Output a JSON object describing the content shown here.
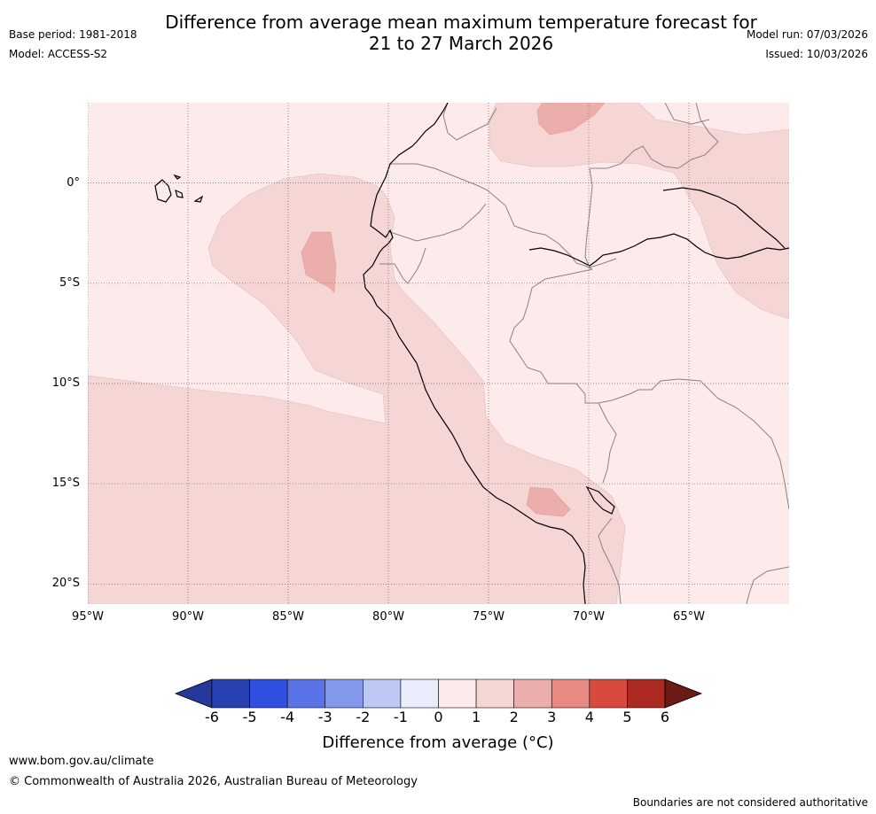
{
  "title": {
    "line1": "Difference from average mean maximum temperature forecast for",
    "line2": "21 to 27 March 2026"
  },
  "meta": {
    "base_period": "Base period: 1981-2018",
    "model": "Model: ACCESS-S2",
    "model_run": "Model run: 07/03/2026",
    "issued": "Issued: 10/03/2026"
  },
  "map": {
    "region": "Western South America",
    "lon_range": [
      -95,
      -60
    ],
    "lat_range": [
      -21,
      4
    ],
    "lat_labels": [
      "0°",
      "5°S",
      "10°S",
      "15°S",
      "20°S"
    ],
    "lat_values": [
      0,
      -5,
      -10,
      -15,
      -20
    ],
    "lon_labels": [
      "95°W",
      "90°W",
      "85°W",
      "80°W",
      "75°W",
      "70°W",
      "65°W"
    ],
    "lon_values": [
      -95,
      -90,
      -85,
      -80,
      -75,
      -70,
      -65
    ],
    "colors": {
      "anomaly_0_1": "#fcebea",
      "anomaly_1_2": "#f5d6d5",
      "anomaly_2_3": "#ecaeac"
    }
  },
  "colorbar": {
    "ticks": [
      "-6",
      "-5",
      "-4",
      "-3",
      "-2",
      "-1",
      "0",
      "1",
      "2",
      "3",
      "4",
      "5",
      "6"
    ],
    "colors": [
      "#26399b",
      "#2740b2",
      "#3150e0",
      "#5b73e8",
      "#8498ec",
      "#bec8f4",
      "#e9ecfb",
      "#fcebea",
      "#f5d6d5",
      "#ecaeac",
      "#e88a82",
      "#d94a3e",
      "#ad2a22",
      "#6b1a16"
    ],
    "label": "Difference from average (°C)"
  },
  "footer": {
    "url": "www.bom.gov.au/climate",
    "copyright": "© Commonwealth of Australia 2026, Australian Bureau of Meteorology",
    "note": "Boundaries are not considered authoritative"
  }
}
